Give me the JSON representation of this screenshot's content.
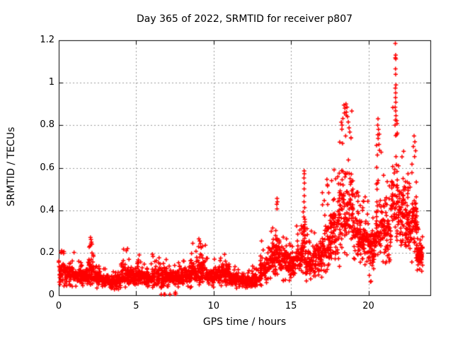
{
  "chart_data": {
    "type": "scatter",
    "title": "Day 365 of 2022, SRMTID for receiver p807",
    "xlabel": "GPS time / hours",
    "ylabel": "SRMTID / TECUs",
    "xlim": [
      0,
      24
    ],
    "ylim": [
      0,
      1.2
    ],
    "xtick_values": [
      0,
      5,
      10,
      15,
      20
    ],
    "xtick_labels": [
      "0",
      "5",
      "10",
      "15",
      "20"
    ],
    "ytick_values": [
      0,
      0.2,
      0.4,
      0.6,
      0.8,
      1,
      1.2
    ],
    "ytick_labels": [
      "0",
      "0.2",
      "0.4",
      "0.6",
      "0.8",
      "1",
      "1.2"
    ],
    "grid": true,
    "legend_position": "none",
    "marker": "plus",
    "marker_color": "#ff0000",
    "grid_color": "#9a9a9a",
    "axis_color": "#000000",
    "background_color": "#ffffff",
    "band_format": [
      "x_start",
      "x_end",
      "y_min",
      "y_max",
      "y_center",
      "count"
    ],
    "point_bands": [
      [
        0.0,
        0.5,
        0.04,
        0.22,
        0.11,
        60
      ],
      [
        0.5,
        1.0,
        0.04,
        0.21,
        0.1,
        55
      ],
      [
        1.0,
        1.5,
        0.04,
        0.16,
        0.09,
        55
      ],
      [
        1.5,
        1.95,
        0.04,
        0.16,
        0.09,
        50
      ],
      [
        1.95,
        2.25,
        0.05,
        0.27,
        0.12,
        45
      ],
      [
        2.25,
        2.75,
        0.03,
        0.14,
        0.08,
        50
      ],
      [
        2.75,
        3.25,
        0.03,
        0.13,
        0.07,
        55
      ],
      [
        3.25,
        3.75,
        0.02,
        0.12,
        0.06,
        55
      ],
      [
        3.75,
        4.0,
        0.02,
        0.13,
        0.07,
        30
      ],
      [
        4.0,
        4.5,
        0.03,
        0.22,
        0.09,
        55
      ],
      [
        4.5,
        5.0,
        0.03,
        0.17,
        0.09,
        55
      ],
      [
        5.0,
        5.5,
        0.04,
        0.19,
        0.09,
        55
      ],
      [
        5.5,
        6.0,
        0.03,
        0.15,
        0.08,
        55
      ],
      [
        6.0,
        6.5,
        0.03,
        0.2,
        0.09,
        55
      ],
      [
        6.5,
        7.0,
        0.03,
        0.21,
        0.09,
        55
      ],
      [
        7.0,
        7.5,
        0.03,
        0.15,
        0.08,
        55
      ],
      [
        7.5,
        8.0,
        0.02,
        0.16,
        0.08,
        55
      ],
      [
        8.0,
        8.5,
        0.03,
        0.18,
        0.09,
        55
      ],
      [
        8.5,
        9.0,
        0.04,
        0.25,
        0.11,
        55
      ],
      [
        9.0,
        9.5,
        0.04,
        0.26,
        0.12,
        55
      ],
      [
        9.5,
        10.0,
        0.03,
        0.18,
        0.09,
        55
      ],
      [
        10.0,
        10.5,
        0.04,
        0.18,
        0.09,
        55
      ],
      [
        10.5,
        11.0,
        0.04,
        0.21,
        0.1,
        55
      ],
      [
        11.0,
        11.5,
        0.03,
        0.15,
        0.08,
        55
      ],
      [
        11.5,
        12.0,
        0.03,
        0.13,
        0.07,
        55
      ],
      [
        12.0,
        12.5,
        0.02,
        0.12,
        0.06,
        50
      ],
      [
        12.5,
        13.0,
        0.02,
        0.14,
        0.07,
        50
      ],
      [
        13.0,
        13.5,
        0.04,
        0.26,
        0.12,
        55
      ],
      [
        13.5,
        14.0,
        0.06,
        0.4,
        0.17,
        60
      ],
      [
        14.0,
        14.3,
        0.08,
        0.45,
        0.22,
        40
      ],
      [
        14.3,
        14.8,
        0.06,
        0.3,
        0.16,
        55
      ],
      [
        14.8,
        15.3,
        0.05,
        0.26,
        0.14,
        55
      ],
      [
        15.3,
        15.75,
        0.08,
        0.36,
        0.18,
        50
      ],
      [
        15.75,
        15.95,
        0.1,
        0.56,
        0.28,
        30
      ],
      [
        15.95,
        16.5,
        0.05,
        0.32,
        0.15,
        60
      ],
      [
        16.5,
        17.0,
        0.05,
        0.38,
        0.17,
        60
      ],
      [
        17.0,
        17.5,
        0.08,
        0.55,
        0.22,
        60
      ],
      [
        17.5,
        18.0,
        0.1,
        0.62,
        0.28,
        65
      ],
      [
        18.0,
        18.5,
        0.12,
        0.86,
        0.38,
        70
      ],
      [
        18.5,
        19.0,
        0.18,
        0.88,
        0.42,
        70
      ],
      [
        19.0,
        19.5,
        0.12,
        0.5,
        0.28,
        65
      ],
      [
        19.5,
        20.0,
        0.1,
        0.48,
        0.24,
        60
      ],
      [
        20.0,
        20.5,
        0.06,
        0.45,
        0.22,
        60
      ],
      [
        20.5,
        21.0,
        0.15,
        0.78,
        0.33,
        60
      ],
      [
        21.0,
        21.5,
        0.15,
        0.55,
        0.3,
        60
      ],
      [
        21.5,
        21.9,
        0.25,
        0.92,
        0.45,
        55
      ],
      [
        21.9,
        22.4,
        0.18,
        0.7,
        0.38,
        65
      ],
      [
        22.4,
        22.8,
        0.2,
        0.6,
        0.32,
        55
      ],
      [
        22.8,
        23.15,
        0.15,
        0.7,
        0.35,
        55
      ],
      [
        23.1,
        23.5,
        0.1,
        0.35,
        0.2,
        45
      ],
      [
        23.15,
        23.45,
        0.13,
        0.24,
        0.18,
        55
      ]
    ],
    "feature_points": [
      [
        2.05,
        0.272
      ],
      [
        2.08,
        0.262
      ],
      [
        2.11,
        0.25
      ],
      [
        2.14,
        0.24
      ],
      [
        2.02,
        0.232
      ],
      [
        9.05,
        0.265
      ],
      [
        9.1,
        0.255
      ],
      [
        9.15,
        0.243
      ],
      [
        14.1,
        0.455
      ],
      [
        14.12,
        0.44
      ],
      [
        14.08,
        0.428
      ],
      [
        15.85,
        0.585
      ],
      [
        15.86,
        0.572
      ],
      [
        15.84,
        0.552
      ],
      [
        15.87,
        0.528
      ],
      [
        15.85,
        0.5
      ],
      [
        15.86,
        0.468
      ],
      [
        15.84,
        0.44
      ],
      [
        17.32,
        0.545
      ],
      [
        17.35,
        0.52
      ],
      [
        18.42,
        0.895
      ],
      [
        18.48,
        0.88
      ],
      [
        18.55,
        0.9
      ],
      [
        18.62,
        0.885
      ],
      [
        18.58,
        0.862
      ],
      [
        18.45,
        0.858
      ],
      [
        18.65,
        0.84
      ],
      [
        18.7,
        0.815
      ],
      [
        18.35,
        0.832
      ],
      [
        18.3,
        0.8
      ],
      [
        18.75,
        0.788
      ],
      [
        18.8,
        0.768
      ],
      [
        20.62,
        0.83
      ],
      [
        20.6,
        0.8
      ],
      [
        20.65,
        0.78
      ],
      [
        20.7,
        0.758
      ],
      [
        20.63,
        0.738
      ],
      [
        20.68,
        0.71
      ],
      [
        20.72,
        0.682
      ],
      [
        20.58,
        0.66
      ],
      [
        21.74,
        1.185
      ],
      [
        21.76,
        1.13
      ],
      [
        21.74,
        1.118
      ],
      [
        21.77,
        1.112
      ],
      [
        21.75,
        1.065
      ],
      [
        21.76,
        1.04
      ],
      [
        21.78,
        0.99
      ],
      [
        21.74,
        0.975
      ],
      [
        21.76,
        0.952
      ],
      [
        21.75,
        0.93
      ],
      [
        21.77,
        0.908
      ],
      [
        21.73,
        0.885
      ],
      [
        21.76,
        0.868
      ],
      [
        21.78,
        0.845
      ],
      [
        21.74,
        0.824
      ],
      [
        21.72,
        0.8
      ],
      [
        22.95,
        0.75
      ],
      [
        23.0,
        0.722
      ],
      [
        22.9,
        0.7
      ],
      [
        23.05,
        0.68
      ],
      [
        22.98,
        0.652
      ]
    ],
    "zero_points": [
      [
        6.62,
        0.004
      ],
      [
        6.8,
        0.004
      ],
      [
        6.86,
        0.004
      ],
      [
        7.18,
        0.004
      ],
      [
        7.5,
        0.006
      ],
      [
        7.53,
        0.006
      ],
      [
        7.56,
        0.006
      ],
      [
        7.53,
        0.014
      ]
    ]
  }
}
